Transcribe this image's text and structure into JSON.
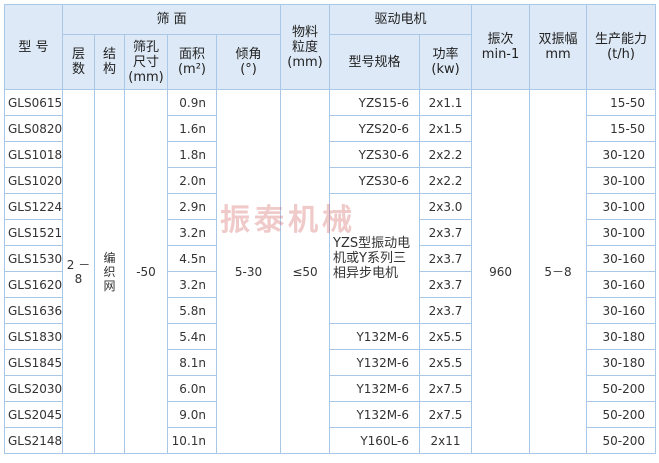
{
  "header": {
    "model": "型 号",
    "screen": "筛 面",
    "layers": "层数",
    "structure": "结构",
    "aperture": "筛孔\n尺寸\n(mm)",
    "area": "面积\n(m²)",
    "angle": "倾角\n(°)",
    "particle": "物料\n粒度\n(mm)",
    "motor": "驱动电机",
    "motor_model": "型号规格",
    "power": "功率\n(kw)",
    "frequency": "振次\nmin-1",
    "amplitude": "双振幅\nmm",
    "capacity": "生产能力\n(t/h)"
  },
  "shared": {
    "layers": "2 － 8",
    "structure": "编\n织\n网",
    "aperture": "-50",
    "angle": "5-30",
    "particle": "≤50",
    "motor_group": "YZS型振动电机或Y系列三相异步电机",
    "frequency": "960",
    "amplitude": "5－8"
  },
  "rows": [
    {
      "model": "GLS0615",
      "area": "0.9n",
      "motor": "YZS15-6",
      "power": "2x1.1",
      "capacity": "15-50"
    },
    {
      "model": "GLS0820",
      "area": "1.6n",
      "motor": "YZS20-6",
      "power": "2x1.5",
      "capacity": "15-50"
    },
    {
      "model": "GLS1018",
      "area": "1.8n",
      "motor": "YZS30-6",
      "power": "2x2.2",
      "capacity": "30-120"
    },
    {
      "model": "GLS1020",
      "area": "2.0n",
      "motor": "YZS30-6",
      "power": "2x2.2",
      "capacity": "30-100"
    },
    {
      "model": "GLS1224",
      "area": "2.9n",
      "power": "2x3.0",
      "capacity": "30-100"
    },
    {
      "model": "GLS1521",
      "area": "3.2n",
      "power": "2x3.7",
      "capacity": "30-100"
    },
    {
      "model": "GLS1530",
      "area": "4.5n",
      "power": "2x3.7",
      "capacity": "30-160"
    },
    {
      "model": "GLS1620",
      "area": "3.2n",
      "power": "2x3.7",
      "capacity": "30-160"
    },
    {
      "model": "GLS1636",
      "area": "5.8n",
      "power": "2x3.7",
      "capacity": "30-160"
    },
    {
      "model": "GLS1830",
      "area": "5.4n",
      "motor": "Y132M-6",
      "power": "2x5.5",
      "capacity": "30-180"
    },
    {
      "model": "GLS1845",
      "area": "8.1n",
      "motor": "Y132M-6",
      "power": "2x5.5",
      "capacity": "30-180"
    },
    {
      "model": "GLS2030",
      "area": "6.0n",
      "motor": "Y132M-6",
      "power": "2x7.5",
      "capacity": "50-200"
    },
    {
      "model": "GLS2045",
      "area": "9.0n",
      "motor": "Y132M-6",
      "power": "2x7.5",
      "capacity": "50-200"
    },
    {
      "model": "GLS2148",
      "area": "10.1n",
      "motor": "Y160L-6",
      "power": "2x11",
      "capacity": "50-200"
    }
  ],
  "watermark": "振泰机械"
}
